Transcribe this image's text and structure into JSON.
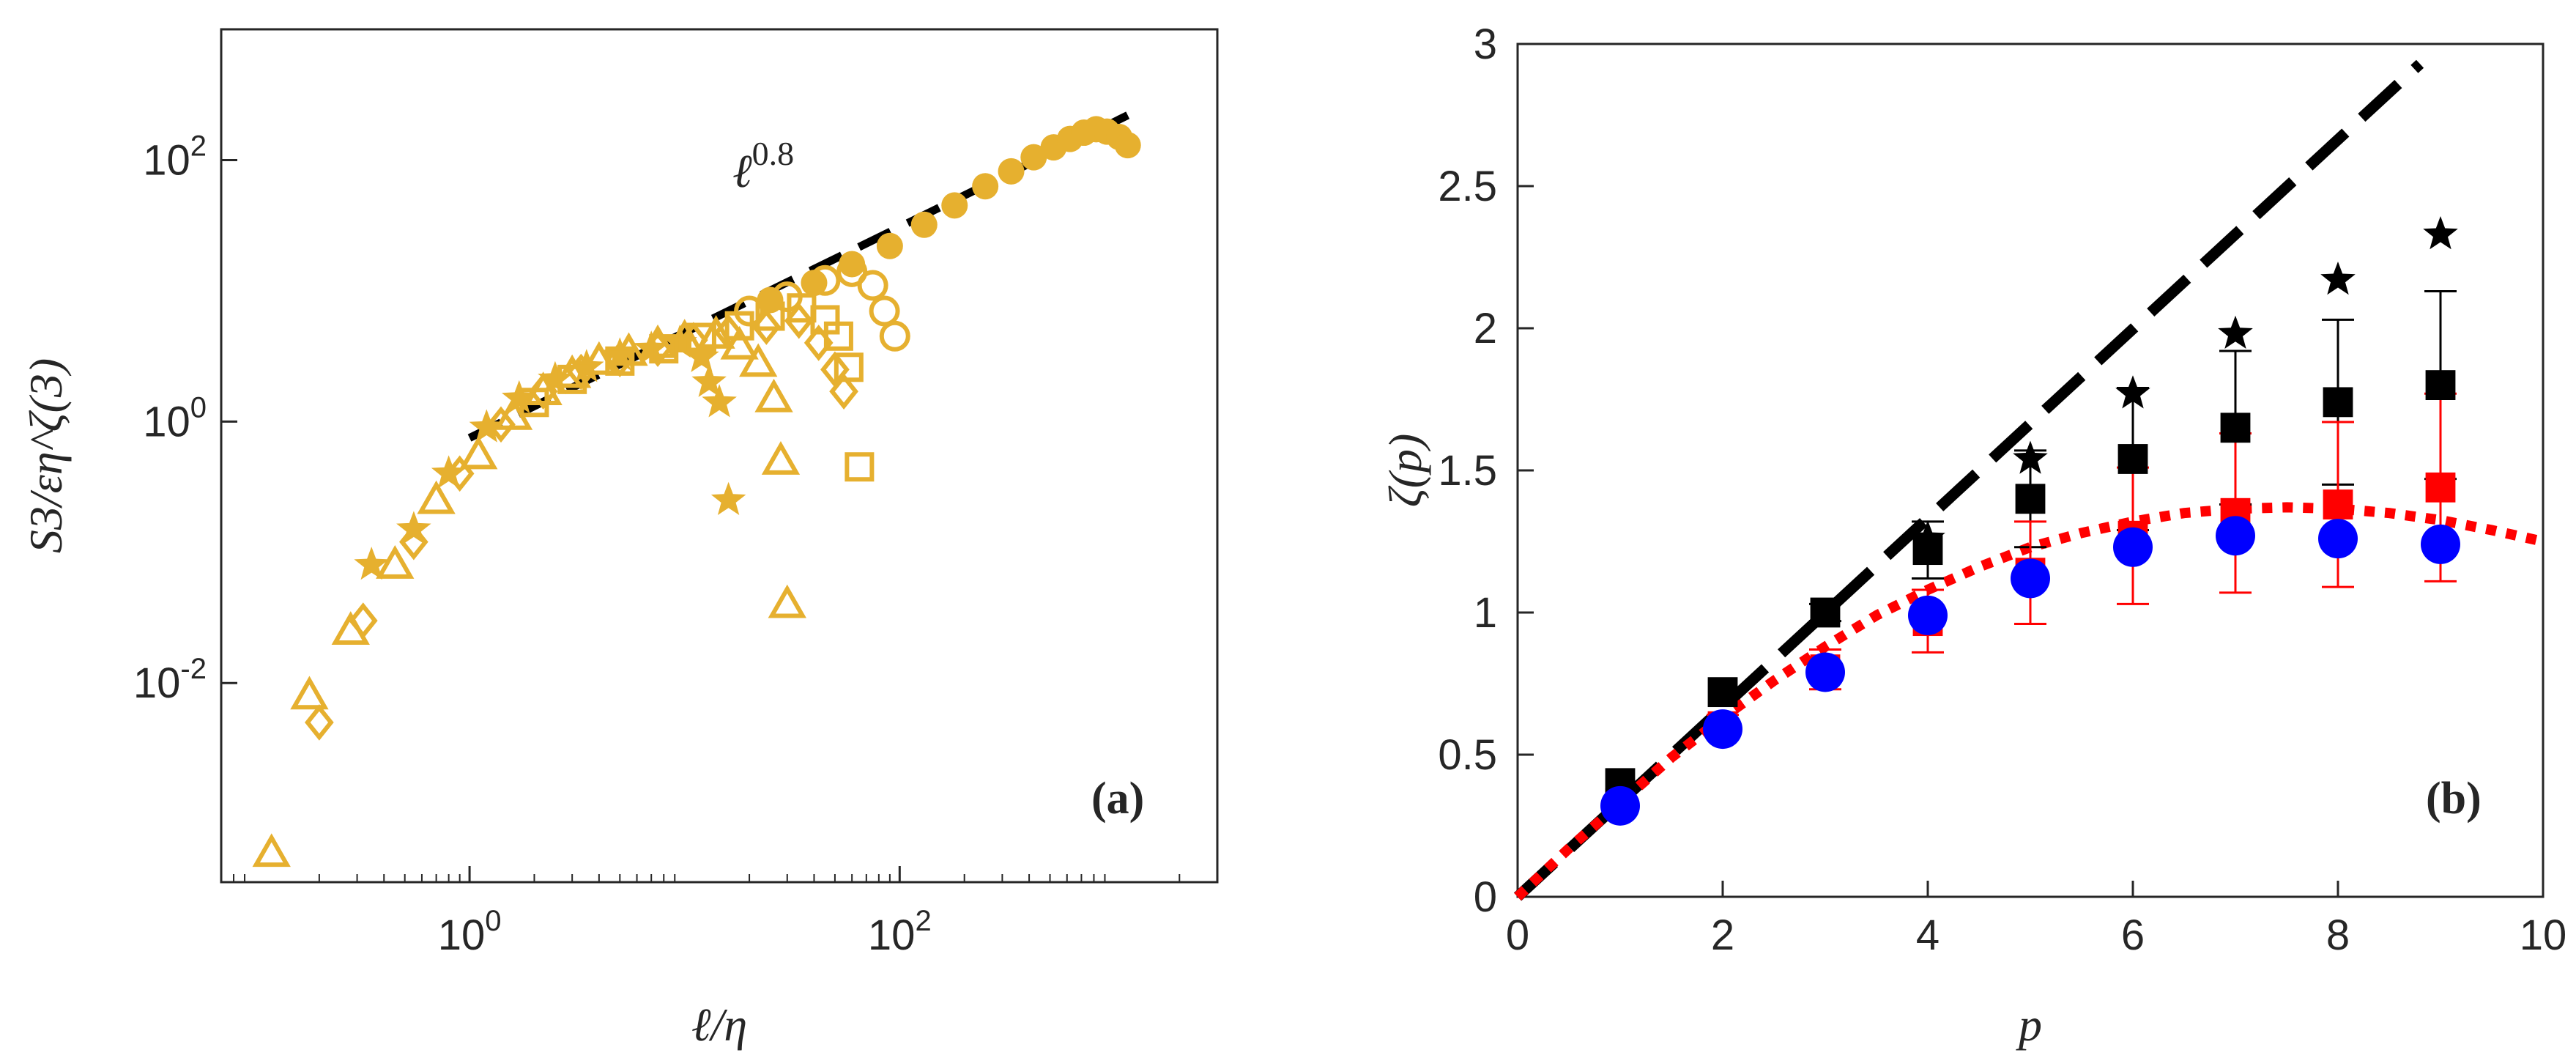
{
  "chart_data": [
    {
      "panel": "(a)",
      "type": "scatter",
      "xscale": "log",
      "yscale": "log",
      "xlim": [
        0.07,
        3000
      ],
      "ylim": [
        0.0003,
        1000
      ],
      "xlabel": "ℓ/η",
      "ylabel": "S3/εη^ζ(3)",
      "xticks": [
        1,
        100
      ],
      "xtick_labels": [
        {
          "base": "10",
          "exp": "0"
        },
        {
          "base": "10",
          "exp": "2"
        }
      ],
      "yticks": [
        0.01,
        1,
        100
      ],
      "ytick_labels": [
        {
          "base": "10",
          "exp": "-2"
        },
        {
          "base": "10",
          "exp": "0"
        },
        {
          "base": "10",
          "exp": "2"
        }
      ],
      "color": "#E6B02F",
      "fit_line": {
        "label_base": "ℓ",
        "label_exp": "0.8",
        "x": [
          1,
          1150
        ],
        "y": [
          0.75,
          220
        ],
        "style": "dashed",
        "color": "#000000"
      },
      "series": [
        {
          "name": "triangles",
          "marker": "triangle-open",
          "x": [
            0.12,
            0.18,
            0.28,
            0.45,
            0.7,
            1.1,
            1.6,
            2.2,
            3.0,
            4.0,
            5.5,
            7.5,
            10,
            14,
            18,
            22,
            26,
            28,
            30
          ],
          "y": [
            0.0005,
            0.008,
            0.025,
            0.08,
            0.25,
            0.55,
            1.1,
            1.7,
            2.3,
            2.9,
            3.4,
            3.9,
            4.3,
            4.6,
            3.8,
            2.8,
            1.5,
            0.5,
            0.04
          ]
        },
        {
          "name": "stars",
          "marker": "star-filled",
          "x": [
            0.35,
            0.55,
            0.8,
            1.2,
            1.7,
            2.5,
            3.5,
            5,
            7,
            9.5,
            12,
            13,
            14.5,
            16
          ],
          "y": [
            0.08,
            0.15,
            0.4,
            0.9,
            1.5,
            2.1,
            2.6,
            3.2,
            3.6,
            4.0,
            3.1,
            2.0,
            1.4,
            0.25
          ]
        },
        {
          "name": "diamonds",
          "marker": "diamond-open",
          "x": [
            0.2,
            0.32,
            0.55,
            0.9,
            1.4,
            2.2,
            3.3,
            5,
            7.5,
            11,
            16,
            24,
            34,
            42,
            50,
            55
          ],
          "y": [
            0.005,
            0.03,
            0.12,
            0.4,
            0.95,
            1.7,
            2.4,
            3.0,
            3.6,
            4.2,
            4.8,
            5.3,
            5.9,
            4.0,
            2.5,
            1.7
          ]
        },
        {
          "name": "squares",
          "marker": "square-open",
          "x": [
            2,
            3,
            5,
            8,
            12,
            18,
            25,
            35,
            45,
            52,
            58,
            65
          ],
          "y": [
            1.4,
            2.1,
            2.9,
            3.6,
            4.4,
            5.4,
            6.4,
            7.4,
            6.0,
            4.5,
            2.6,
            0.45
          ]
        },
        {
          "name": "circles-open",
          "marker": "circle-open",
          "x": [
            20,
            30,
            45,
            60,
            75,
            85,
            95
          ],
          "y": [
            7,
            9,
            12,
            14,
            11,
            7,
            4.5
          ]
        },
        {
          "name": "circles-filled",
          "marker": "circle-filled",
          "x": [
            25,
            40,
            60,
            90,
            130,
            180,
            250,
            330,
            420,
            520,
            620,
            720,
            820,
            920,
            1050,
            1150
          ],
          "y": [
            8.5,
            11.5,
            16,
            22,
            32,
            45,
            63,
            82,
            105,
            125,
            145,
            162,
            172,
            165,
            150,
            130
          ]
        }
      ]
    },
    {
      "panel": "(b)",
      "type": "scatter",
      "xlim": [
        0,
        10
      ],
      "ylim": [
        0,
        3
      ],
      "xlabel": "p",
      "ylabel": "ζ(p)",
      "xticks": [
        0,
        2,
        4,
        6,
        8,
        10
      ],
      "xtick_labels": [
        "0",
        "2",
        "4",
        "6",
        "8",
        "10"
      ],
      "yticks": [
        0,
        0.5,
        1,
        1.5,
        2,
        2.5,
        3
      ],
      "ytick_labels": [
        "0",
        "0.5",
        "1",
        "1.5",
        "2",
        "2.5",
        "3"
      ],
      "lines": [
        {
          "name": "K41 p/3",
          "style": "dashed",
          "color": "#000000",
          "x": [
            0,
            8.8
          ],
          "y": [
            0,
            2.93
          ]
        },
        {
          "name": "fit",
          "style": "dotted",
          "color": "#FF0000",
          "x": [
            0,
            0.5,
            1,
            1.5,
            2,
            2.5,
            3,
            3.5,
            4,
            4.5,
            5,
            5.5,
            6,
            6.5,
            7,
            7.5,
            8,
            8.5,
            9,
            9.5,
            10
          ],
          "y": [
            0,
            0.17,
            0.33,
            0.49,
            0.63,
            0.76,
            0.88,
            0.99,
            1.08,
            1.16,
            1.23,
            1.28,
            1.32,
            1.35,
            1.365,
            1.37,
            1.365,
            1.35,
            1.325,
            1.29,
            1.25
          ]
        }
      ],
      "series": [
        {
          "name": "black squares",
          "marker": "square-filled",
          "color": "#000000",
          "x": [
            1,
            2,
            3,
            4,
            5,
            6,
            7,
            8,
            9
          ],
          "y": [
            0.4,
            0.72,
            1.0,
            1.22,
            1.4,
            1.54,
            1.65,
            1.74,
            1.8
          ],
          "err": [
            0.0,
            0.0,
            0.03,
            0.1,
            0.17,
            0.25,
            0.27,
            0.29,
            0.33
          ]
        },
        {
          "name": "black stars",
          "marker": "star-filled",
          "color": "#000000",
          "x": [
            4,
            5,
            6,
            7,
            8,
            9
          ],
          "y": [
            1.26,
            1.54,
            1.77,
            1.98,
            2.17,
            2.33
          ]
        },
        {
          "name": "red squares",
          "marker": "square-filled",
          "color": "#FF0000",
          "x": [
            1,
            2,
            3,
            4,
            5,
            6,
            7,
            8,
            9
          ],
          "y": [
            0.33,
            0.6,
            0.8,
            0.97,
            1.14,
            1.27,
            1.35,
            1.38,
            1.44
          ],
          "err": [
            0.02,
            0.04,
            0.07,
            0.11,
            0.18,
            0.24,
            0.28,
            0.29,
            0.33
          ]
        },
        {
          "name": "blue circles",
          "marker": "circle-filled",
          "color": "#0000FF",
          "x": [
            1,
            2,
            3,
            4,
            5,
            6,
            7,
            8,
            9
          ],
          "y": [
            0.32,
            0.59,
            0.79,
            0.99,
            1.12,
            1.23,
            1.27,
            1.26,
            1.24
          ]
        }
      ]
    }
  ]
}
